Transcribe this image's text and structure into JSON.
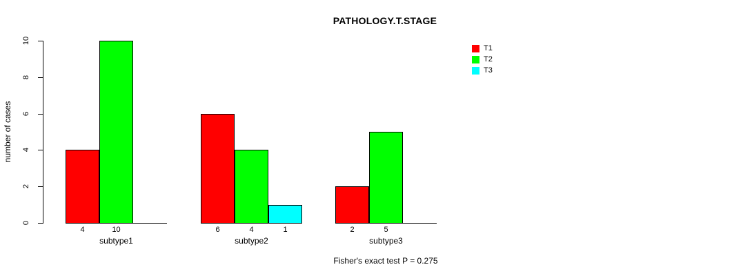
{
  "chart_data": {
    "type": "bar",
    "title": "PATHOLOGY.T.STAGE",
    "ylabel": "number of cases",
    "xlabel": "",
    "ylim": [
      0,
      10
    ],
    "yticks": [
      0,
      2,
      4,
      6,
      8,
      10
    ],
    "categories": [
      "subtype1",
      "subtype2",
      "subtype3"
    ],
    "series": [
      {
        "name": "T1",
        "color": "#ff0000",
        "values": [
          4,
          6,
          2
        ]
      },
      {
        "name": "T2",
        "color": "#00ff00",
        "values": [
          10,
          4,
          5
        ]
      },
      {
        "name": "T3",
        "color": "#00ffff",
        "values": [
          0,
          1,
          0
        ]
      }
    ],
    "bar_value_labels_shown": true,
    "legend_position": "top-right",
    "grid": false,
    "background_color": "#ffffff",
    "annotation": "Fisher's exact test P = 0.275"
  }
}
